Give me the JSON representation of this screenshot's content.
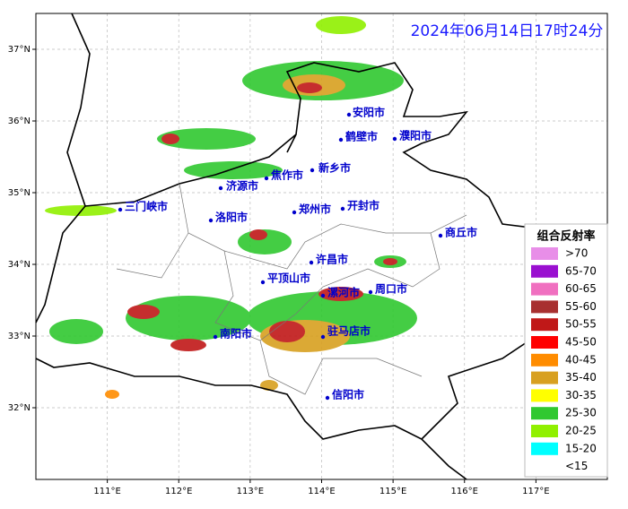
{
  "title": "2024年06月14日17时24分",
  "map": {
    "xlim": [
      110,
      118
    ],
    "ylim": [
      31,
      37.5
    ],
    "xticks": [
      {
        "value": 111,
        "label": "111°E"
      },
      {
        "value": 112,
        "label": "112°E"
      },
      {
        "value": 113,
        "label": "113°E"
      },
      {
        "value": 114,
        "label": "114°E"
      },
      {
        "value": 115,
        "label": "115°E"
      },
      {
        "value": 116,
        "label": "116°E"
      },
      {
        "value": 117,
        "label": "117°E"
      }
    ],
    "yticks": [
      {
        "value": 32,
        "label": "32°N"
      },
      {
        "value": 33,
        "label": "33°N"
      },
      {
        "value": 34,
        "label": "34°N"
      },
      {
        "value": 35,
        "label": "35°N"
      },
      {
        "value": 36,
        "label": "36°N"
      },
      {
        "value": 37,
        "label": "37°N"
      }
    ],
    "grid": true
  },
  "cities": [
    "安阳市",
    "鹤壁市",
    "濮阳市",
    "新乡市",
    "焦作市",
    "济源市",
    "三门峡市",
    "郑州市",
    "开封市",
    "洛阳市",
    "商丘市",
    "许昌市",
    "平顶山市",
    "漯河市",
    "周口市",
    "南阳市",
    "驻马店市",
    "信阳市"
  ],
  "legend": {
    "title": "组合反射率",
    "items": [
      {
        "label": ">70",
        "color": "#e88ee8"
      },
      {
        "label": "65-70",
        "color": "#9a10d0"
      },
      {
        "label": "60-65",
        "color": "#f070c0"
      },
      {
        "label": "55-60",
        "color": "#a83030"
      },
      {
        "label": "50-55",
        "color": "#c01818"
      },
      {
        "label": "45-50",
        "color": "#ff0000"
      },
      {
        "label": "40-45",
        "color": "#ff8c00"
      },
      {
        "label": "35-40",
        "color": "#d8a020"
      },
      {
        "label": "30-35",
        "color": "#ffff00"
      },
      {
        "label": "25-30",
        "color": "#30c830"
      },
      {
        "label": "20-25",
        "color": "#90f000"
      },
      {
        "label": "15-20",
        "color": "#00ffff"
      },
      {
        "label": "<15",
        "color": "#ffffff"
      }
    ]
  }
}
